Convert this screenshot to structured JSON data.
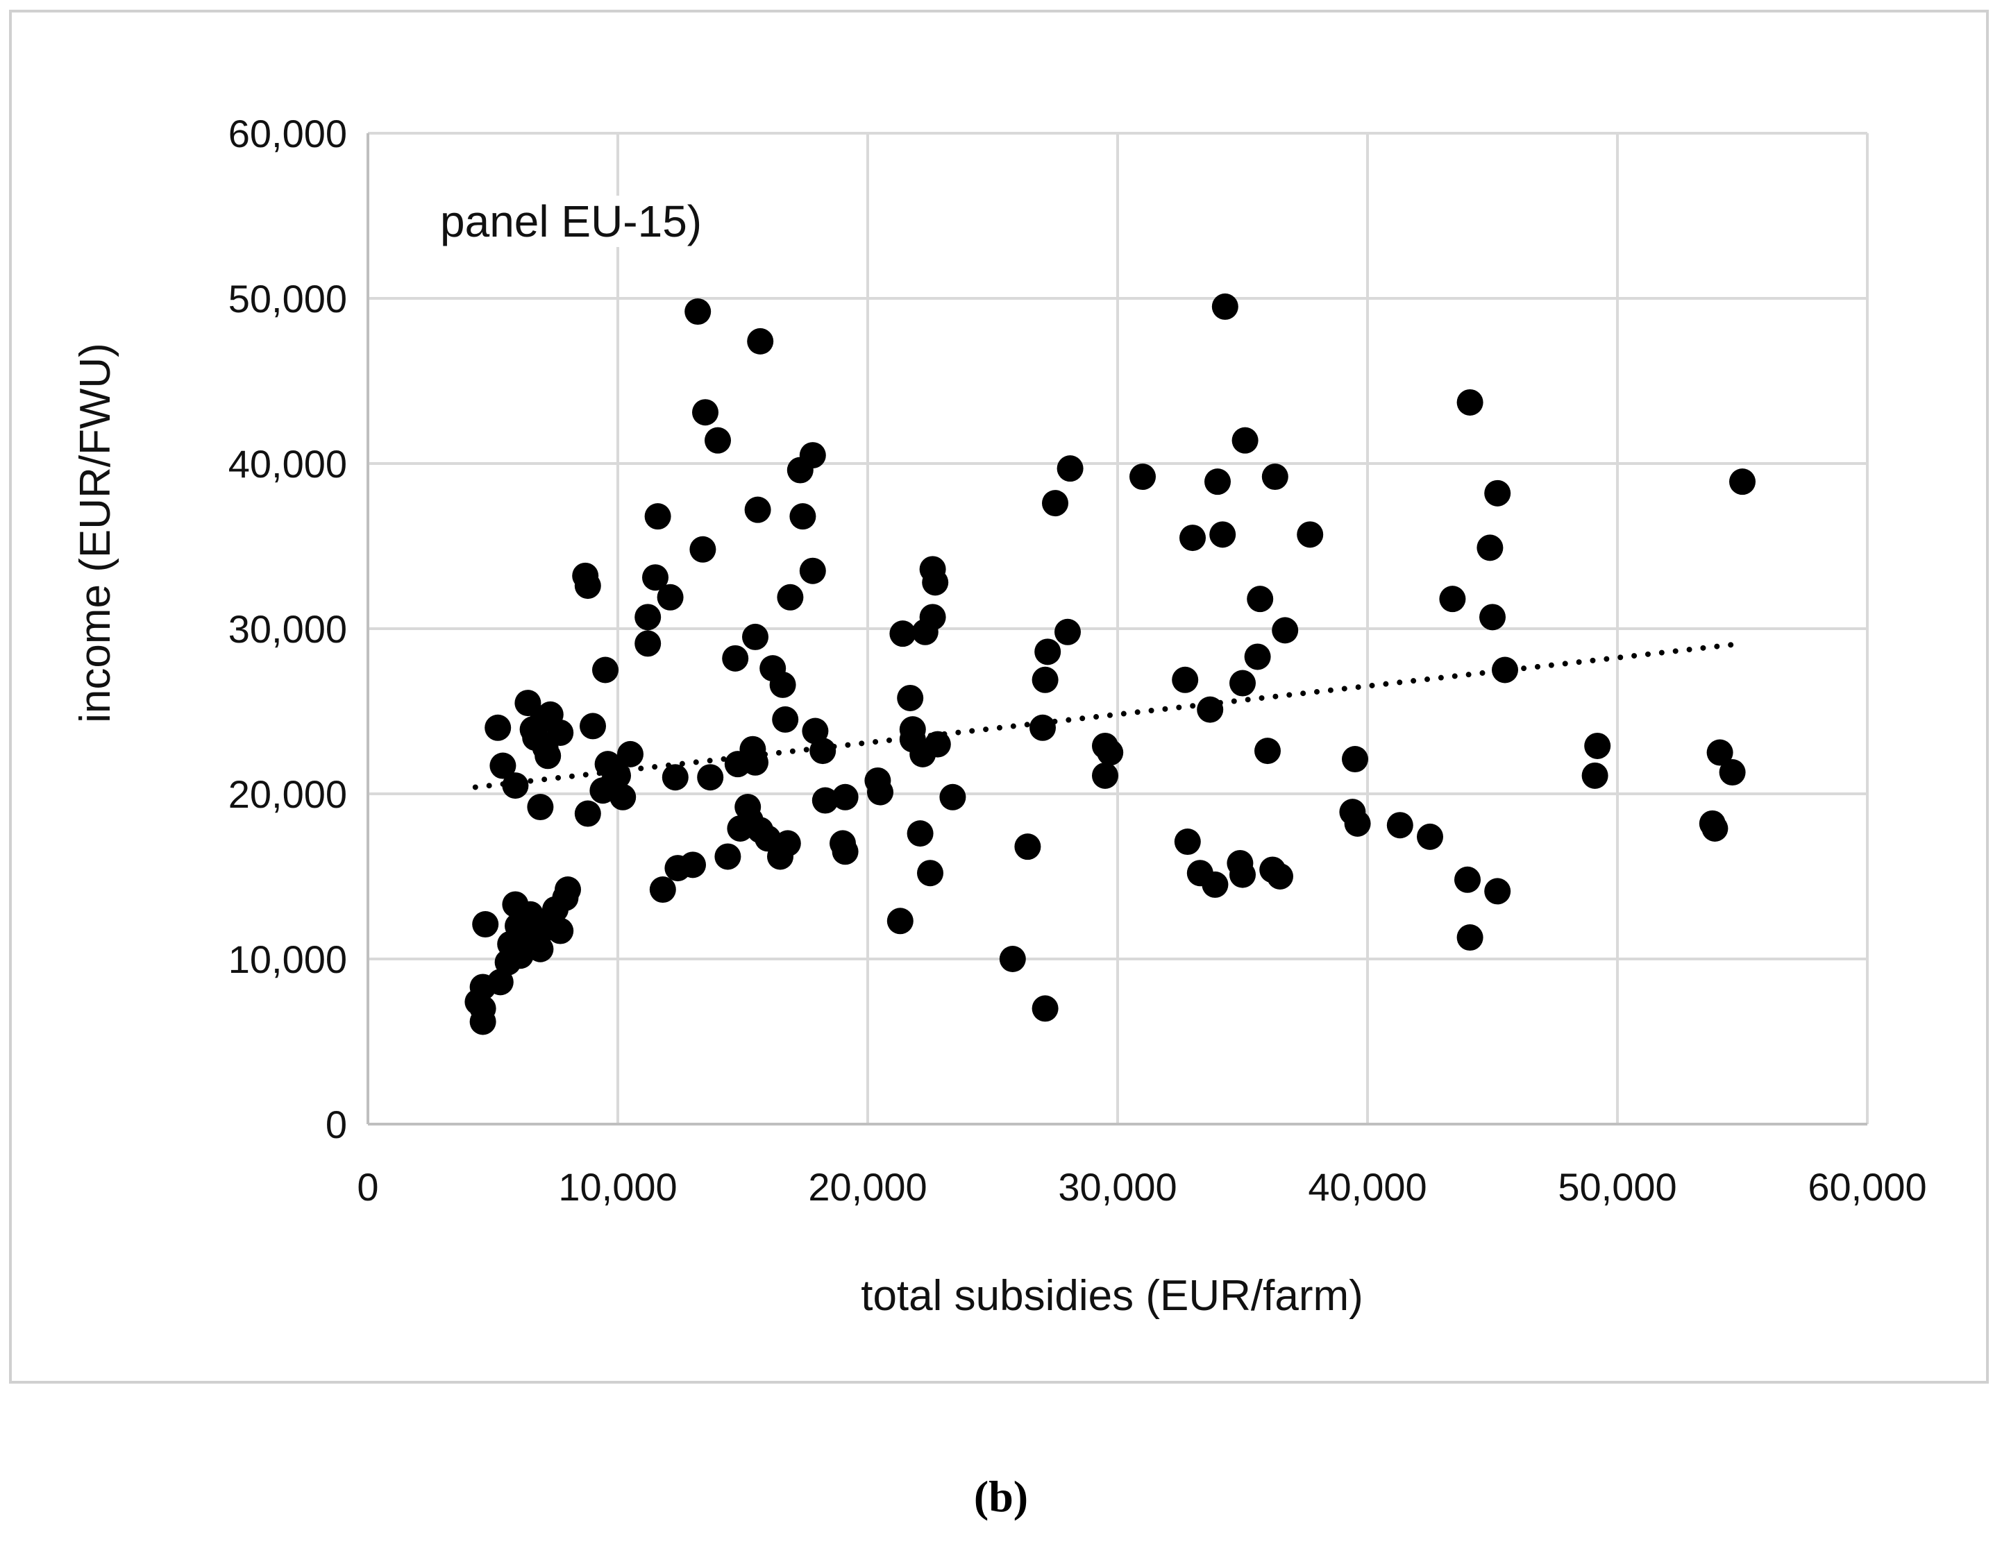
{
  "chart_data": {
    "type": "scatter",
    "annotation": "panel EU-15)",
    "xlabel": "total subsidies (EUR/farm)",
    "ylabel": "income (EUR/FWU)",
    "xlim": [
      0,
      60000
    ],
    "ylim": [
      0,
      60000
    ],
    "x_ticks": [
      "0",
      "10,000",
      "20,000",
      "30,000",
      "40,000",
      "50,000",
      "60,000"
    ],
    "y_ticks": [
      "0",
      "10,000",
      "20,000",
      "30,000",
      "40,000",
      "50,000",
      "60,000"
    ],
    "grid": true,
    "trendline": {
      "style": "dotted",
      "x": [
        4300,
        55000
      ],
      "y": [
        20400,
        29100
      ]
    },
    "points": [
      [
        4400,
        7400
      ],
      [
        4600,
        6200
      ],
      [
        4600,
        8300
      ],
      [
        4600,
        7000
      ],
      [
        4700,
        12100
      ],
      [
        5200,
        24000
      ],
      [
        5300,
        8600
      ],
      [
        5400,
        21700
      ],
      [
        5600,
        9800
      ],
      [
        5700,
        10900
      ],
      [
        5900,
        20500
      ],
      [
        5900,
        13300
      ],
      [
        6000,
        12000
      ],
      [
        6100,
        10200
      ],
      [
        6200,
        11500
      ],
      [
        6400,
        25500
      ],
      [
        6500,
        12700
      ],
      [
        6600,
        23900
      ],
      [
        6700,
        23400
      ],
      [
        6800,
        11300
      ],
      [
        6900,
        19200
      ],
      [
        6900,
        10600
      ],
      [
        7000,
        24500
      ],
      [
        7100,
        22800
      ],
      [
        7100,
        12000
      ],
      [
        7200,
        22300
      ],
      [
        7300,
        24800
      ],
      [
        7500,
        13000
      ],
      [
        7700,
        23700
      ],
      [
        7700,
        11700
      ],
      [
        7900,
        13700
      ],
      [
        8000,
        14200
      ],
      [
        8700,
        33200
      ],
      [
        8800,
        32600
      ],
      [
        8800,
        18800
      ],
      [
        9000,
        24100
      ],
      [
        9400,
        20200
      ],
      [
        9500,
        27500
      ],
      [
        9600,
        21800
      ],
      [
        9800,
        20600
      ],
      [
        10000,
        21100
      ],
      [
        10200,
        19800
      ],
      [
        10500,
        22400
      ],
      [
        11200,
        30700
      ],
      [
        11200,
        29100
      ],
      [
        11500,
        33100
      ],
      [
        11600,
        36800
      ],
      [
        11800,
        14200
      ],
      [
        12100,
        31900
      ],
      [
        12300,
        21000
      ],
      [
        12400,
        15500
      ],
      [
        13000,
        15700
      ],
      [
        13200,
        49200
      ],
      [
        13400,
        34800
      ],
      [
        13500,
        43100
      ],
      [
        13700,
        21000
      ],
      [
        14000,
        41400
      ],
      [
        14400,
        16200
      ],
      [
        14700,
        28200
      ],
      [
        14800,
        21800
      ],
      [
        14900,
        17900
      ],
      [
        15200,
        19200
      ],
      [
        15300,
        18400
      ],
      [
        15400,
        22700
      ],
      [
        15500,
        29500
      ],
      [
        15500,
        21900
      ],
      [
        15600,
        37200
      ],
      [
        15700,
        47400
      ],
      [
        15700,
        17800
      ],
      [
        16000,
        17300
      ],
      [
        16200,
        27600
      ],
      [
        16500,
        16200
      ],
      [
        16600,
        26600
      ],
      [
        16700,
        24500
      ],
      [
        16800,
        17000
      ],
      [
        16900,
        31900
      ],
      [
        17300,
        39600
      ],
      [
        17400,
        36800
      ],
      [
        17800,
        40500
      ],
      [
        17800,
        33500
      ],
      [
        17900,
        23800
      ],
      [
        18200,
        22600
      ],
      [
        18300,
        19600
      ],
      [
        19000,
        17000
      ],
      [
        19100,
        19800
      ],
      [
        19100,
        16500
      ],
      [
        20400,
        20800
      ],
      [
        20500,
        20100
      ],
      [
        21300,
        12300
      ],
      [
        21400,
        29700
      ],
      [
        21700,
        25800
      ],
      [
        21800,
        23300
      ],
      [
        21800,
        23900
      ],
      [
        22100,
        17600
      ],
      [
        22200,
        22400
      ],
      [
        22300,
        29800
      ],
      [
        22500,
        15200
      ],
      [
        22600,
        33600
      ],
      [
        22600,
        30700
      ],
      [
        22700,
        32800
      ],
      [
        22800,
        23000
      ],
      [
        23400,
        19800
      ],
      [
        25800,
        10000
      ],
      [
        26400,
        16800
      ],
      [
        27000,
        24000
      ],
      [
        27100,
        26900
      ],
      [
        27100,
        7000
      ],
      [
        27200,
        28600
      ],
      [
        27500,
        37600
      ],
      [
        28000,
        29800
      ],
      [
        28100,
        39700
      ],
      [
        29500,
        21100
      ],
      [
        29500,
        22900
      ],
      [
        29700,
        22500
      ],
      [
        31000,
        39200
      ],
      [
        32700,
        26900
      ],
      [
        32800,
        17100
      ],
      [
        33000,
        35500
      ],
      [
        33300,
        15200
      ],
      [
        33700,
        25100
      ],
      [
        33900,
        14500
      ],
      [
        34000,
        38900
      ],
      [
        34200,
        35700
      ],
      [
        34300,
        49500
      ],
      [
        34900,
        15800
      ],
      [
        35000,
        26700
      ],
      [
        35000,
        15100
      ],
      [
        35100,
        41400
      ],
      [
        35600,
        28300
      ],
      [
        35700,
        31800
      ],
      [
        36000,
        22600
      ],
      [
        36200,
        15400
      ],
      [
        36300,
        39200
      ],
      [
        36500,
        15000
      ],
      [
        36700,
        29900
      ],
      [
        37700,
        35700
      ],
      [
        39400,
        18900
      ],
      [
        39500,
        22100
      ],
      [
        39600,
        18200
      ],
      [
        41300,
        18100
      ],
      [
        42500,
        17400
      ],
      [
        43400,
        31800
      ],
      [
        44000,
        14800
      ],
      [
        44100,
        43700
      ],
      [
        44100,
        11300
      ],
      [
        44900,
        34900
      ],
      [
        45000,
        30700
      ],
      [
        45200,
        38200
      ],
      [
        45200,
        14100
      ],
      [
        45500,
        27500
      ],
      [
        49100,
        21100
      ],
      [
        49200,
        22900
      ],
      [
        53800,
        18200
      ],
      [
        53900,
        17900
      ],
      [
        54100,
        22500
      ],
      [
        54600,
        21300
      ],
      [
        55000,
        38900
      ]
    ]
  },
  "figure_label": "(b)"
}
